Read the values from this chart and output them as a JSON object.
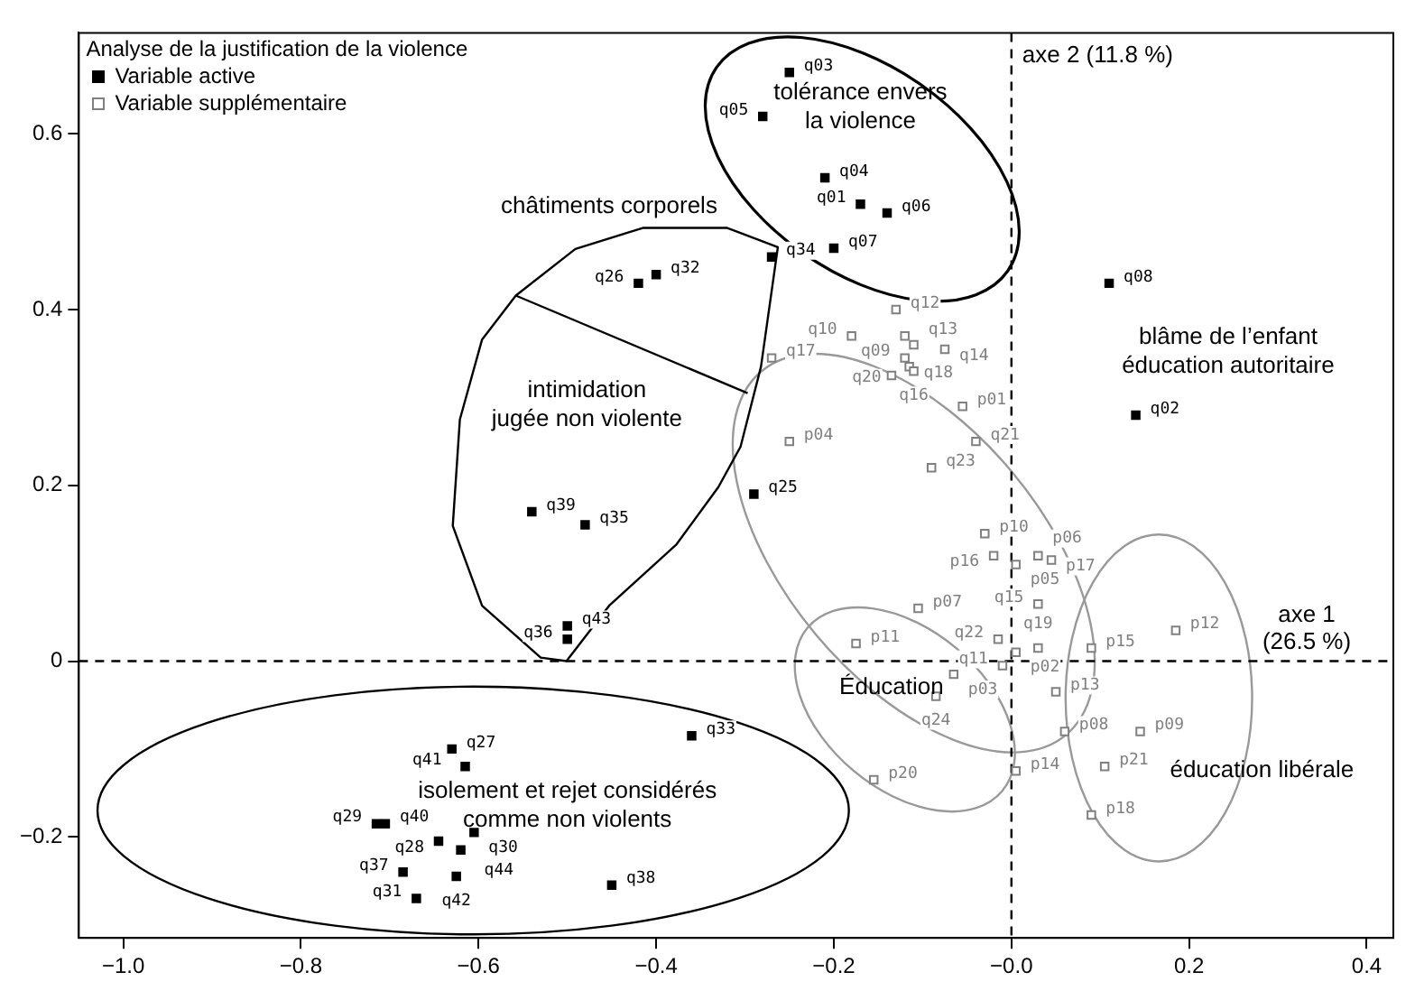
{
  "chart_data": {
    "type": "scatter",
    "legend_title": "Analyse de la justification de la violence",
    "legend": "top left",
    "marker": "square",
    "grid": false,
    "xlim": [
      -1.05,
      0.43
    ],
    "ylim": [
      -0.315,
      0.715
    ],
    "xticks": [
      {
        "value": -1,
        "label": "−1.0"
      },
      {
        "value": -0.8,
        "label": "−0.8"
      },
      {
        "value": -0.6,
        "label": "−0.6"
      },
      {
        "value": -0.4,
        "label": "−0.4"
      },
      {
        "value": -0.2,
        "label": "−0.2"
      },
      {
        "value": 0,
        "label": "−0.0"
      },
      0.2,
      0.4
    ],
    "yticks": [
      {
        "value": -0.2,
        "label": "−0.2"
      },
      0.0,
      0.2,
      0.4,
      0.6
    ],
    "series": [
      {
        "name": "Variable active",
        "color": "#000000",
        "x": [
          -0.25,
          -0.28,
          -0.21,
          -0.17,
          -0.14,
          -0.2,
          0.11,
          -0.4,
          -0.42,
          -0.27,
          -0.29,
          0.14,
          -0.54,
          -0.48,
          -0.5,
          -0.5,
          -0.63,
          -0.615,
          -0.36,
          -0.715,
          -0.705,
          -0.645,
          -0.605,
          -0.62,
          -0.685,
          -0.625,
          -0.67,
          -0.45
        ],
        "values": [
          0.67,
          0.62,
          0.55,
          0.52,
          0.51,
          0.47,
          0.43,
          0.44,
          0.43,
          0.46,
          0.19,
          0.28,
          0.17,
          0.155,
          0.04,
          0.025,
          -0.1,
          -0.12,
          -0.085,
          -0.185,
          -0.185,
          -0.205,
          -0.195,
          -0.215,
          -0.24,
          -0.245,
          -0.27,
          -0.255
        ]
      },
      {
        "name": "Variable supplémentaire",
        "color": "#808080",
        "x": [
          -0.13,
          -0.18,
          -0.27,
          -0.12,
          -0.11,
          -0.075,
          -0.12,
          -0.115,
          -0.11,
          -0.135,
          -0.055,
          -0.04,
          -0.09,
          -0.25,
          -0.03,
          -0.02,
          0.005,
          0.03,
          0.045,
          -0.105,
          0.03,
          -0.175,
          -0.015,
          0.005,
          0.03,
          -0.065,
          -0.01,
          -0.085,
          0.05,
          0.06,
          0.005,
          -0.155,
          0.09,
          0.185,
          0.145,
          0.105,
          0.09
        ],
        "values": [
          0.4,
          0.37,
          0.345,
          0.37,
          0.36,
          0.355,
          0.345,
          0.335,
          0.33,
          0.325,
          0.29,
          0.25,
          0.22,
          0.25,
          0.145,
          0.12,
          0.11,
          0.12,
          0.115,
          0.06,
          0.065,
          0.02,
          0.025,
          0.01,
          0.015,
          -0.015,
          -0.005,
          -0.04,
          -0.035,
          -0.08,
          -0.125,
          -0.135,
          0.015,
          0.035,
          -0.08,
          -0.12,
          -0.175
        ]
      }
    ],
    "ref_lines": [
      {
        "axis": "x",
        "value": 0,
        "label": "axe 2 (11.8 %)",
        "color": "#000000",
        "line_style": "dashed"
      },
      {
        "axis": "y",
        "value": 0,
        "label": "axe 1\n(26.5 %)",
        "color": "#000000",
        "line_style": "dashed"
      }
    ],
    "annotations": [
      "tolérance envers\nla violence",
      "châtiments corporels",
      "intimidation\njugée non violente",
      "blâme de l’enfant\néducation autoritaire",
      "Éducation",
      "éducation libérale",
      "isolement et rejet considérés\ncomme non violents",
      {
        "text": "q03",
        "x": -0.25,
        "y": 0.67
      },
      {
        "text": "q05",
        "x": -0.28,
        "y": 0.62
      },
      {
        "text": "q04",
        "x": -0.21,
        "y": 0.55
      },
      {
        "text": "q01",
        "x": -0.17,
        "y": 0.52
      },
      {
        "text": "q06",
        "x": -0.14,
        "y": 0.51
      },
      {
        "text": "q07",
        "x": -0.2,
        "y": 0.47
      },
      {
        "text": "q08",
        "x": 0.11,
        "y": 0.43
      },
      {
        "text": "q32",
        "x": -0.4,
        "y": 0.44
      },
      {
        "text": "q26",
        "x": -0.42,
        "y": 0.43
      },
      {
        "text": "q34",
        "x": -0.27,
        "y": 0.46
      },
      {
        "text": "q25",
        "x": -0.29,
        "y": 0.19
      },
      {
        "text": "q02",
        "x": 0.14,
        "y": 0.28
      },
      {
        "text": "q39",
        "x": -0.54,
        "y": 0.17
      },
      {
        "text": "q35",
        "x": -0.48,
        "y": 0.155
      },
      {
        "text": "q43",
        "x": -0.5,
        "y": 0.04
      },
      {
        "text": "q36",
        "x": -0.5,
        "y": 0.025
      },
      {
        "text": "q27",
        "x": -0.63,
        "y": -0.1
      },
      {
        "text": "q41",
        "x": -0.615,
        "y": -0.12
      },
      {
        "text": "q33",
        "x": -0.36,
        "y": -0.085
      },
      {
        "text": "q29",
        "x": -0.715,
        "y": -0.185
      },
      {
        "text": "q40",
        "x": -0.705,
        "y": -0.185
      },
      {
        "text": "q28",
        "x": -0.645,
        "y": -0.205
      },
      {
        "text": "q30",
        "x": -0.605,
        "y": -0.195
      },
      {
        "text": "q44",
        "x": -0.62,
        "y": -0.215
      },
      {
        "text": "q37",
        "x": -0.685,
        "y": -0.24
      },
      {
        "text": "q42",
        "x": -0.625,
        "y": -0.245
      },
      {
        "text": "q31",
        "x": -0.67,
        "y": -0.27
      },
      {
        "text": "q38",
        "x": -0.45,
        "y": -0.255
      },
      {
        "text": "q12",
        "x": -0.13,
        "y": 0.4
      },
      {
        "text": "q10",
        "x": -0.18,
        "y": 0.37
      },
      {
        "text": "q17",
        "x": -0.27,
        "y": 0.345
      },
      {
        "text": "q13",
        "x": -0.12,
        "y": 0.37
      },
      {
        "text": "q09",
        "x": -0.11,
        "y": 0.36
      },
      {
        "text": "q14",
        "x": -0.075,
        "y": 0.355
      },
      {
        "text": "q20",
        "x": -0.12,
        "y": 0.345
      },
      {
        "text": "q18",
        "x": -0.115,
        "y": 0.335
      },
      {
        "text": "q16",
        "x": -0.11,
        "y": 0.33
      },
      {
        "text": "p01",
        "x": -0.055,
        "y": 0.29
      },
      {
        "text": "q21",
        "x": -0.04,
        "y": 0.25
      },
      {
        "text": "q23",
        "x": -0.09,
        "y": 0.22
      },
      {
        "text": "p04",
        "x": -0.25,
        "y": 0.25
      },
      {
        "text": "p10",
        "x": -0.03,
        "y": 0.145
      },
      {
        "text": "p16",
        "x": -0.02,
        "y": 0.12
      },
      {
        "text": "p05",
        "x": 0.005,
        "y": 0.11
      },
      {
        "text": "p06",
        "x": 0.03,
        "y": 0.12
      },
      {
        "text": "p17",
        "x": 0.045,
        "y": 0.115
      },
      {
        "text": "p07",
        "x": -0.105,
        "y": 0.06
      },
      {
        "text": "q15",
        "x": 0.03,
        "y": 0.065
      },
      {
        "text": "p11",
        "x": -0.175,
        "y": 0.02
      },
      {
        "text": "q22",
        "x": -0.015,
        "y": 0.025
      },
      {
        "text": "p02",
        "x": 0.005,
        "y": 0.01
      },
      {
        "text": "q19",
        "x": 0.03,
        "y": 0.015
      },
      {
        "text": "p03",
        "x": -0.065,
        "y": -0.015
      },
      {
        "text": "q11",
        "x": -0.01,
        "y": -0.005
      },
      {
        "text": "q24",
        "x": -0.085,
        "y": -0.04
      },
      {
        "text": "p13",
        "x": 0.05,
        "y": -0.035
      },
      {
        "text": "p08",
        "x": 0.06,
        "y": -0.08
      },
      {
        "text": "p14",
        "x": 0.005,
        "y": -0.125
      },
      {
        "text": "p20",
        "x": -0.155,
        "y": -0.135
      },
      {
        "text": "p15",
        "x": 0.09,
        "y": 0.015
      },
      {
        "text": "p12",
        "x": 0.185,
        "y": 0.035
      },
      {
        "text": "p09",
        "x": 0.145,
        "y": -0.08
      },
      {
        "text": "p21",
        "x": 0.105,
        "y": -0.12
      },
      {
        "text": "p18",
        "x": 0.09,
        "y": -0.175
      }
    ]
  }
}
